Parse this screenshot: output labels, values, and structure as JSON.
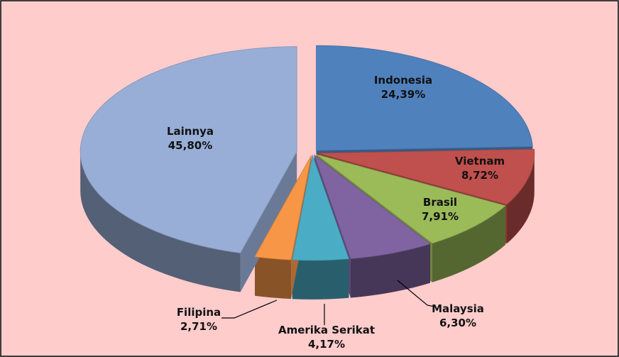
{
  "chart_data": {
    "type": "pie3d",
    "categories": [
      "Indonesia",
      "Vietnam",
      "Brasil",
      "Malaysia",
      "Amerika Serikat",
      "Filipina",
      "Lainnya"
    ],
    "values": [
      24.39,
      8.72,
      7.91,
      6.3,
      4.17,
      2.71,
      45.8
    ],
    "value_labels": [
      "24,39%",
      "8,72%",
      "7,91%",
      "6,30%",
      "4,17%",
      "2,71%",
      "45,80%"
    ],
    "colors": [
      "#4f81bd",
      "#c0504d",
      "#9bbb59",
      "#8064a2",
      "#4bacc6",
      "#f79646",
      "#98aed6"
    ]
  }
}
